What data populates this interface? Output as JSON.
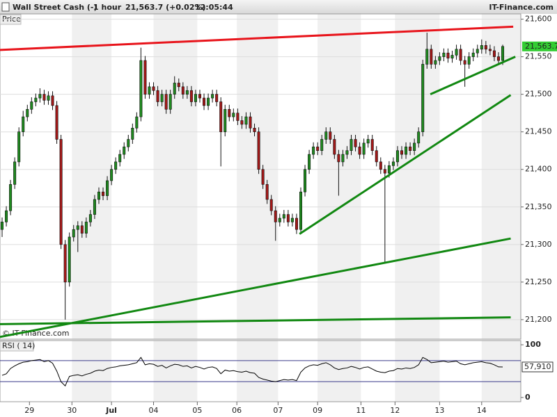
{
  "header": {
    "instrument": "Wall Street Cash (-)",
    "interval": "1 hour",
    "quote": "21,563.7 (+0.02%)",
    "time": "12:05:44",
    "brand": "IT-Finance.com"
  },
  "chart_data": [
    {
      "type": "candlestick",
      "panel_label": "Price",
      "watermark": "© IT-Finance.com",
      "up_color": "#1f8a1f",
      "down_color": "#a31818",
      "xlim": [
        -0.5,
        123.3
      ],
      "ylim": [
        21174,
        21607
      ],
      "yticks": [
        {
          "value": 21200,
          "label": "21,200"
        },
        {
          "value": 21250,
          "label": "21,250"
        },
        {
          "value": 21300,
          "label": "21,300"
        },
        {
          "value": 21350,
          "label": "21,350"
        },
        {
          "value": 21400,
          "label": "21,400"
        },
        {
          "value": 21450,
          "label": "21,450"
        },
        {
          "value": 21500,
          "label": "21,500"
        },
        {
          "value": 21550,
          "label": "21,550"
        },
        {
          "value": 21600,
          "label": "21,600"
        }
      ],
      "grid": true,
      "open": [
        21320,
        21330,
        21345,
        21380,
        21410,
        21450,
        21470,
        21480,
        21490,
        21495,
        21500,
        21492,
        21498,
        21485,
        21440,
        21300,
        21250,
        21310,
        21320,
        21325,
        21315,
        21330,
        21340,
        21360,
        21370,
        21365,
        21385,
        21400,
        21410,
        21420,
        21430,
        21440,
        21455,
        21470,
        21545,
        21500,
        21510,
        21505,
        21490,
        21500,
        21480,
        21500,
        21515,
        21510,
        21500,
        21505,
        21490,
        21500,
        21495,
        21485,
        21495,
        21500,
        21490,
        21450,
        21480,
        21470,
        21475,
        21465,
        21460,
        21470,
        21455,
        21450,
        21400,
        21380,
        21360,
        21345,
        21330,
        21335,
        21340,
        21330,
        21335,
        21320,
        21370,
        21400,
        21420,
        21430,
        21425,
        21440,
        21450,
        21440,
        21420,
        21410,
        21420,
        21425,
        21440,
        21430,
        21420,
        21435,
        21440,
        21425,
        21410,
        21400,
        21395,
        21405,
        21410,
        21425,
        21420,
        21430,
        21425,
        21435,
        21450,
        21540,
        21560,
        21540,
        21545,
        21550,
        21555,
        21548,
        21552,
        21560,
        21545,
        21540,
        21550,
        21555,
        21560,
        21565,
        21560,
        21558,
        21550,
        21545
      ],
      "high": [
        21336,
        21351,
        21386,
        21416,
        21456,
        21478,
        21486,
        21496,
        21501,
        21508,
        21506,
        21504,
        21504,
        21491,
        21446,
        21306,
        21316,
        21326,
        21331,
        21331,
        21336,
        21346,
        21366,
        21376,
        21376,
        21391,
        21406,
        21416,
        21426,
        21436,
        21446,
        21461,
        21476,
        21562,
        21551,
        21516,
        21516,
        21511,
        21506,
        21506,
        21506,
        21524,
        21521,
        21516,
        21511,
        21511,
        21506,
        21506,
        21501,
        21501,
        21506,
        21506,
        21496,
        21486,
        21486,
        21481,
        21481,
        21471,
        21476,
        21476,
        21461,
        21456,
        21406,
        21386,
        21366,
        21351,
        21341,
        21346,
        21346,
        21341,
        21341,
        21376,
        21406,
        21426,
        21436,
        21436,
        21446,
        21456,
        21456,
        21446,
        21426,
        21426,
        21431,
        21446,
        21446,
        21436,
        21441,
        21446,
        21446,
        21431,
        21416,
        21406,
        21411,
        21416,
        21431,
        21431,
        21436,
        21436,
        21441,
        21456,
        21546,
        21582,
        21566,
        21551,
        21556,
        21561,
        21561,
        21558,
        21566,
        21566,
        21551,
        21556,
        21561,
        21566,
        21573,
        21571,
        21566,
        21564,
        21556,
        21566
      ],
      "low": [
        21310,
        21324,
        21339,
        21374,
        21404,
        21444,
        21464,
        21474,
        21484,
        21489,
        21486,
        21486,
        21479,
        21434,
        21294,
        21200,
        21244,
        21304,
        21290,
        21309,
        21309,
        21324,
        21334,
        21354,
        21359,
        21359,
        21379,
        21394,
        21404,
        21414,
        21424,
        21434,
        21449,
        21464,
        21494,
        21494,
        21499,
        21484,
        21484,
        21474,
        21474,
        21494,
        21504,
        21494,
        21494,
        21484,
        21484,
        21489,
        21479,
        21479,
        21489,
        21484,
        21404,
        21444,
        21464,
        21464,
        21459,
        21454,
        21454,
        21449,
        21444,
        21394,
        21374,
        21354,
        21339,
        21305,
        21324,
        21329,
        21324,
        21324,
        21314,
        21314,
        21364,
        21394,
        21414,
        21419,
        21419,
        21434,
        21434,
        21414,
        21365,
        21404,
        21414,
        21419,
        21424,
        21414,
        21414,
        21429,
        21419,
        21404,
        21394,
        21275,
        21389,
        21399,
        21404,
        21414,
        21414,
        21419,
        21419,
        21429,
        21444,
        21534,
        21534,
        21534,
        21539,
        21544,
        21542,
        21542,
        21546,
        21539,
        21510,
        21534,
        21544,
        21549,
        21554,
        21554,
        21552,
        21544,
        21539,
        21539
      ],
      "close": [
        21330,
        21345,
        21380,
        21410,
        21450,
        21470,
        21480,
        21490,
        21495,
        21500,
        21492,
        21498,
        21485,
        21440,
        21300,
        21250,
        21310,
        21320,
        21325,
        21315,
        21330,
        21340,
        21360,
        21370,
        21365,
        21385,
        21400,
        21410,
        21420,
        21430,
        21440,
        21455,
        21470,
        21545,
        21500,
        21510,
        21505,
        21490,
        21500,
        21480,
        21500,
        21515,
        21510,
        21500,
        21505,
        21490,
        21500,
        21495,
        21485,
        21495,
        21500,
        21490,
        21450,
        21480,
        21470,
        21475,
        21465,
        21460,
        21470,
        21455,
        21450,
        21400,
        21380,
        21360,
        21345,
        21330,
        21335,
        21340,
        21330,
        21335,
        21320,
        21370,
        21400,
        21420,
        21430,
        21425,
        21440,
        21450,
        21440,
        21420,
        21410,
        21420,
        21425,
        21440,
        21430,
        21420,
        21435,
        21440,
        21425,
        21410,
        21400,
        21395,
        21405,
        21410,
        21425,
        21420,
        21430,
        21425,
        21435,
        21450,
        21540,
        21560,
        21540,
        21545,
        21550,
        21555,
        21548,
        21552,
        21560,
        21545,
        21540,
        21550,
        21555,
        21560,
        21565,
        21560,
        21558,
        21550,
        21545,
        21563.7
      ],
      "last_value": {
        "value": 21563.7,
        "label": "21,563.7"
      },
      "last_color": "#33cc33",
      "trendlines": [
        {
          "color": "#e8141b",
          "x": [
            -0.5,
            121.5
          ],
          "y": [
            21559,
            21590
          ]
        },
        {
          "color": "#118811",
          "x": [
            70.7,
            120.9
          ],
          "y": [
            21314,
            21499
          ]
        },
        {
          "color": "#118811",
          "x": [
            101.8,
            122
          ],
          "y": [
            21500,
            21550
          ]
        },
        {
          "color": "#118811",
          "x": [
            -0.5,
            120.9
          ],
          "y": [
            21177,
            21308
          ]
        },
        {
          "color": "#118811",
          "x": [
            -0.5,
            120.9
          ],
          "y": [
            21194,
            21203
          ]
        }
      ]
    },
    {
      "type": "line",
      "panel_label": "RSI ( 14)",
      "color": "#000000",
      "level_color": "#3a3a8a",
      "levels": [
        70,
        30
      ],
      "xlim": [
        -0.5,
        123.3
      ],
      "ylim": [
        -8,
        108
      ],
      "yticks": [
        0,
        100
      ],
      "xticks": [
        {
          "value": 6.5,
          "label": "29"
        },
        {
          "value": 16.6,
          "label": "30"
        },
        {
          "value": 26,
          "label": "Jul"
        },
        {
          "value": 36,
          "label": "04"
        },
        {
          "value": 46.4,
          "label": "05"
        },
        {
          "value": 55.8,
          "label": "06"
        },
        {
          "value": 65.6,
          "label": "07"
        },
        {
          "value": 75,
          "label": "09"
        },
        {
          "value": 85.3,
          "label": "11"
        },
        {
          "value": 93.4,
          "label": "12"
        },
        {
          "value": 104,
          "label": "13"
        },
        {
          "value": 114,
          "label": "14"
        }
      ],
      "values": [
        42,
        45,
        55,
        60,
        64,
        67,
        68,
        70,
        71,
        72,
        68,
        70,
        65,
        50,
        30,
        22,
        40,
        42,
        43,
        41,
        44,
        46,
        50,
        52,
        51,
        55,
        57,
        58,
        60,
        61,
        62,
        64,
        66,
        76,
        62,
        64,
        63,
        59,
        61,
        56,
        60,
        63,
        62,
        59,
        60,
        56,
        59,
        57,
        54,
        57,
        58,
        55,
        45,
        52,
        50,
        51,
        49,
        48,
        50,
        47,
        46,
        38,
        35,
        33,
        31,
        30,
        32,
        34,
        33,
        34,
        32,
        48,
        56,
        60,
        62,
        61,
        64,
        66,
        62,
        56,
        53,
        55,
        56,
        59,
        57,
        54,
        57,
        58,
        54,
        50,
        48,
        47,
        50,
        51,
        55,
        54,
        56,
        55,
        57,
        62,
        76,
        72,
        66,
        67,
        68,
        69,
        67,
        68,
        69,
        64,
        62,
        64,
        66,
        67,
        68,
        66,
        65,
        62,
        58,
        57.91
      ],
      "last_value": {
        "value": 57.91,
        "label": "57,910"
      }
    }
  ]
}
